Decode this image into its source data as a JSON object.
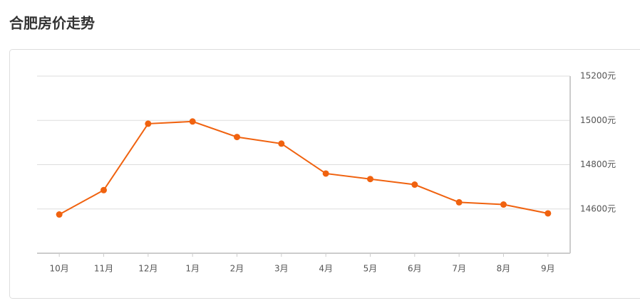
{
  "chart_data": {
    "type": "line",
    "title": "合肥房价走势",
    "categories": [
      "10月",
      "11月",
      "12月",
      "1月",
      "2月",
      "3月",
      "4月",
      "5月",
      "6月",
      "7月",
      "8月",
      "9月"
    ],
    "series": [
      {
        "name": "合肥",
        "color": "#f0620f",
        "values": [
          14575,
          14685,
          14985,
          14995,
          14925,
          14895,
          14760,
          14735,
          14710,
          14630,
          14620,
          14580
        ]
      }
    ],
    "ylim": [
      14400,
      15200
    ],
    "yticks": [
      {
        "value": 14600,
        "label": "14600元"
      },
      {
        "value": 14800,
        "label": "14800元"
      },
      {
        "value": 15000,
        "label": "15000元"
      },
      {
        "value": 15200,
        "label": "15200元"
      }
    ],
    "grid": true
  }
}
